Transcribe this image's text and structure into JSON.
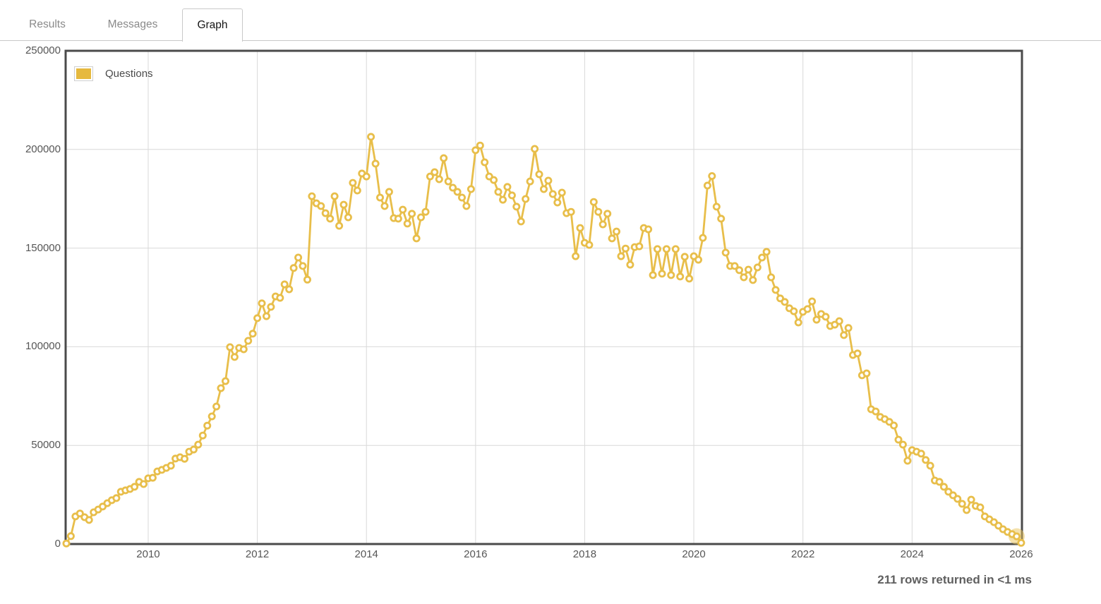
{
  "tabs": [
    {
      "label": "Results",
      "active": false
    },
    {
      "label": "Messages",
      "active": false
    },
    {
      "label": "Graph",
      "active": true
    }
  ],
  "legend": {
    "label": "Questions"
  },
  "status": {
    "text": "211 rows returned in <1 ms"
  },
  "colors": {
    "series_gold": "#E8BE4A",
    "swatch_gold": "#E6B93E",
    "marker_fill": "#ffffff",
    "halo": "rgba(233,195,90,0.5)",
    "plot_border": "#4a4a4a",
    "grid": "#d9d9d9",
    "axis_text": "#565656"
  },
  "chart_data": {
    "type": "line",
    "title": "",
    "xlabel": "",
    "ylabel": "",
    "grid": true,
    "legend_position": "top-left",
    "ylim": [
      0,
      250000
    ],
    "y_ticks": [
      0,
      50000,
      100000,
      150000,
      200000,
      250000
    ],
    "x_ticks": [
      2010,
      2012,
      2014,
      2016,
      2018,
      2020,
      2022,
      2024,
      2026
    ],
    "xlim_years": [
      2008.487,
      2026.014
    ],
    "highlight_point_index": 209,
    "series": [
      {
        "name": "Questions",
        "start_month": "2008-07",
        "interval": "monthly",
        "values": [
          300,
          4000,
          14000,
          15500,
          13600,
          12200,
          16100,
          17500,
          19000,
          20700,
          22200,
          23300,
          26500,
          27200,
          27900,
          29000,
          31500,
          30400,
          33300,
          33600,
          36800,
          37600,
          38600,
          39700,
          43300,
          44000,
          43200,
          46800,
          47900,
          50400,
          55000,
          60000,
          64700,
          69700,
          79000,
          82600,
          99800,
          94800,
          99400,
          98700,
          103000,
          106600,
          114500,
          122000,
          115500,
          120200,
          125500,
          124800,
          131600,
          129100,
          139900,
          145200,
          140900,
          134000,
          176300,
          172700,
          171300,
          167700,
          164900,
          176300,
          161300,
          172000,
          165600,
          183100,
          179200,
          187800,
          186300,
          206400,
          192800,
          175600,
          171300,
          178500,
          165200,
          164900,
          169500,
          162400,
          167400,
          154900,
          165600,
          168400,
          186300,
          188500,
          184900,
          195600,
          183800,
          180600,
          178500,
          175600,
          171300,
          179900,
          199600,
          202000,
          193500,
          186300,
          184500,
          178500,
          174500,
          181000,
          176700,
          171000,
          163500,
          174900,
          183800,
          200300,
          187400,
          179900,
          184200,
          177400,
          173100,
          178100,
          167700,
          168400,
          145900,
          160200,
          152700,
          151600,
          173400,
          168400,
          162000,
          167400,
          154900,
          158400,
          145900,
          149800,
          141600,
          150500,
          150900,
          160200,
          159500,
          136300,
          149500,
          137000,
          149500,
          136300,
          149500,
          135600,
          145600,
          134500,
          145900,
          144100,
          155200,
          181700,
          186500,
          171000,
          164900,
          147700,
          140900,
          140900,
          138800,
          135200,
          139100,
          133800,
          140200,
          145200,
          148100,
          135200,
          128800,
          124500,
          122700,
          119500,
          118000,
          112300,
          117700,
          119100,
          123000,
          113700,
          116600,
          115200,
          110500,
          111200,
          113000,
          105900,
          109500,
          95800,
          96600,
          85500,
          86500,
          68300,
          67200,
          64400,
          63300,
          61900,
          60100,
          52900,
          50400,
          42200,
          47600,
          46800,
          45800,
          42600,
          39700,
          32200,
          31500,
          29000,
          26500,
          24700,
          22900,
          20400,
          17200,
          22500,
          19300,
          18600,
          14000,
          12500,
          11100,
          9300,
          7500,
          6100,
          5000,
          3900,
          600
        ]
      }
    ]
  }
}
